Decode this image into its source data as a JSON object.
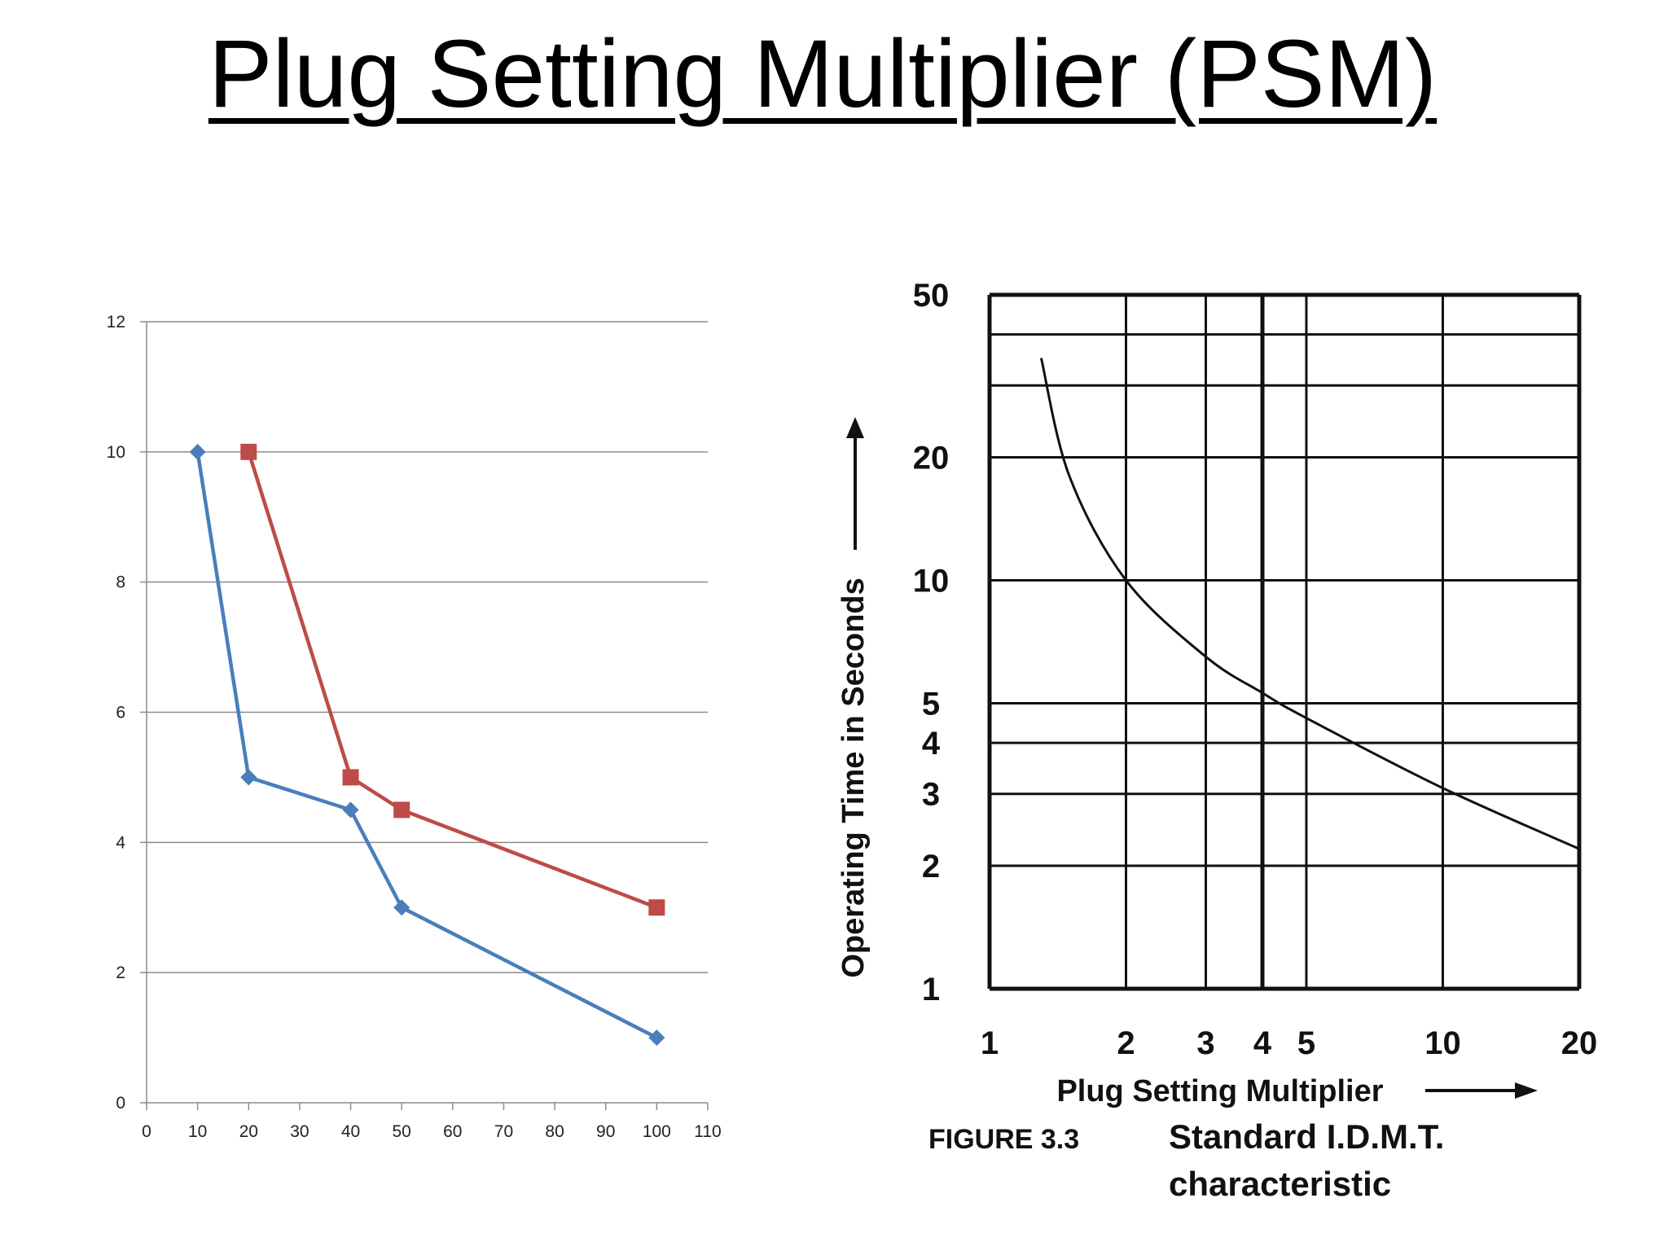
{
  "slide": {
    "title": "Plug Setting Multiplier (PSM)"
  },
  "chart_data": [
    {
      "type": "line",
      "title": "",
      "xlabel": "",
      "ylabel": "",
      "xlim": [
        0,
        110
      ],
      "ylim": [
        0,
        12
      ],
      "x_ticks": [
        0,
        10,
        20,
        30,
        40,
        50,
        60,
        70,
        80,
        90,
        100,
        110
      ],
      "y_ticks": [
        0,
        2,
        4,
        6,
        8,
        10,
        12
      ],
      "grid": true,
      "legend": "none",
      "series": [
        {
          "color": "#4a7ebb",
          "marker": "diamond",
          "points": [
            [
              10,
              10
            ],
            [
              20,
              5
            ],
            [
              40,
              4.5
            ],
            [
              50,
              3
            ],
            [
              100,
              1
            ]
          ]
        },
        {
          "color": "#be4b48",
          "marker": "square",
          "points": [
            [
              20,
              10
            ],
            [
              40,
              5
            ],
            [
              50,
              4.5
            ],
            [
              100,
              3
            ]
          ]
        }
      ]
    },
    {
      "type": "line",
      "title": "",
      "xlabel": "Plug Setting Multiplier",
      "ylabel": "Operating Time in Seconds",
      "scale": "log-log",
      "xlim": [
        1,
        20
      ],
      "ylim": [
        1,
        50
      ],
      "x_ticks": [
        "1",
        "2",
        "3",
        "4",
        "5",
        "10",
        "20"
      ],
      "y_ticks": [
        "1",
        "2",
        "3",
        "4",
        "5",
        "10",
        "20",
        "50"
      ],
      "grid": true,
      "series": [
        {
          "color": "#111111",
          "points": [
            [
              1.3,
              35
            ],
            [
              1.5,
              18
            ],
            [
              2,
              10
            ],
            [
              3,
              6.5
            ],
            [
              4,
              5.3
            ],
            [
              5,
              4.6
            ],
            [
              10,
              3.1
            ],
            [
              20,
              2.2
            ]
          ]
        }
      ],
      "caption": {
        "number": "FIGURE 3.3",
        "text_line1": "Standard I.D.M.T.",
        "text_line2": "characteristic"
      }
    }
  ]
}
